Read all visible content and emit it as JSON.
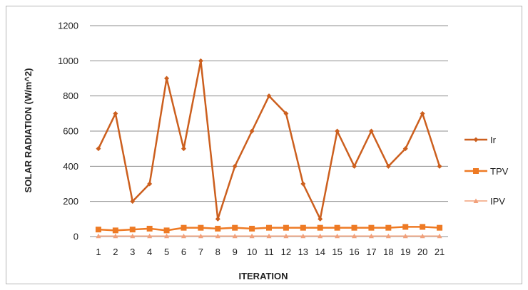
{
  "chart_data": {
    "type": "line",
    "xlabel": "ITERATION",
    "ylabel": "SOLAR RADIATION (W/m^2)",
    "ylim": [
      0,
      1200
    ],
    "yticks": [
      0,
      200,
      400,
      600,
      800,
      1000,
      1200
    ],
    "categories": [
      "1",
      "2",
      "3",
      "4",
      "5",
      "6",
      "7",
      "8",
      "9",
      "10",
      "11",
      "12",
      "13",
      "14",
      "15",
      "16",
      "17",
      "18",
      "19",
      "20",
      "21"
    ],
    "grid": true,
    "legend_position": "right",
    "series": [
      {
        "name": "Ir",
        "color": "#cc5f1e",
        "marker": "diamond",
        "values": [
          500,
          700,
          200,
          300,
          900,
          500,
          1000,
          100,
          400,
          600,
          800,
          700,
          300,
          100,
          600,
          400,
          600,
          400,
          500,
          700,
          400
        ]
      },
      {
        "name": "TPV",
        "color": "#ee7a24",
        "marker": "square",
        "values": [
          40,
          35,
          40,
          45,
          35,
          50,
          50,
          45,
          50,
          45,
          50,
          50,
          50,
          50,
          50,
          50,
          50,
          50,
          55,
          55,
          50
        ]
      },
      {
        "name": "IPV",
        "color": "#f2a07a",
        "marker": "triangle",
        "values": [
          3,
          3,
          3,
          3,
          3,
          3,
          3,
          3,
          3,
          3,
          3,
          3,
          3,
          3,
          3,
          3,
          3,
          3,
          3,
          3,
          3
        ]
      }
    ]
  }
}
